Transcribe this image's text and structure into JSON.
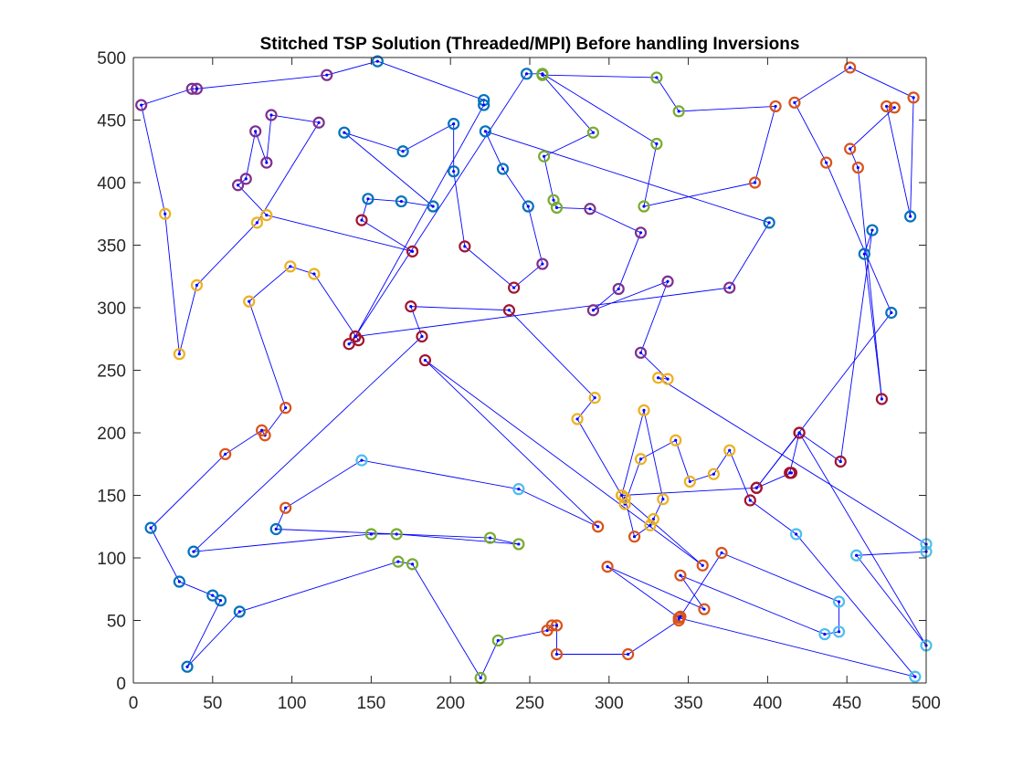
{
  "chart_data": {
    "type": "scatter",
    "title": "Stitched TSP Solution (Threaded/MPI) Before handling Inversions",
    "xlabel": "",
    "ylabel": "",
    "xlim": [
      0,
      500
    ],
    "ylim": [
      0,
      500
    ],
    "xticks": [
      "0",
      "50",
      "100",
      "150",
      "200",
      "250",
      "300",
      "350",
      "400",
      "450",
      "500"
    ],
    "yticks": [
      "0",
      "50",
      "100",
      "150",
      "200",
      "250",
      "300",
      "350",
      "400",
      "450",
      "500"
    ],
    "grid": false,
    "legend": "none",
    "route_color": "#0000ff",
    "node_dot_color": "#0000ff",
    "route_order": "listed order of points forms one closed tour",
    "colors": {
      "blue": "#0072BD",
      "orange": "#D95319",
      "yellow": "#EDB120",
      "purple": "#7E2F8E",
      "green": "#77AC30",
      "cyan": "#4DBEEE",
      "red": "#A2142F"
    },
    "points": [
      {
        "x": 5,
        "y": 462,
        "c": "purple"
      },
      {
        "x": 37,
        "y": 475,
        "c": "purple"
      },
      {
        "x": 40,
        "y": 475,
        "c": "purple"
      },
      {
        "x": 122,
        "y": 486,
        "c": "purple"
      },
      {
        "x": 154,
        "y": 497,
        "c": "blue"
      },
      {
        "x": 221,
        "y": 466,
        "c": "blue"
      },
      {
        "x": 221,
        "y": 462,
        "c": "blue"
      },
      {
        "x": 140,
        "y": 277,
        "c": "red"
      },
      {
        "x": 136,
        "y": 271,
        "c": "red"
      },
      {
        "x": 142,
        "y": 274,
        "c": "red"
      },
      {
        "x": 114,
        "y": 327,
        "c": "yellow"
      },
      {
        "x": 99,
        "y": 333,
        "c": "yellow"
      },
      {
        "x": 73,
        "y": 305,
        "c": "yellow"
      },
      {
        "x": 96,
        "y": 220,
        "c": "orange"
      },
      {
        "x": 83,
        "y": 198,
        "c": "orange"
      },
      {
        "x": 81,
        "y": 202,
        "c": "orange"
      },
      {
        "x": 58,
        "y": 183,
        "c": "orange"
      },
      {
        "x": 11,
        "y": 124,
        "c": "blue"
      },
      {
        "x": 29,
        "y": 81,
        "c": "blue"
      },
      {
        "x": 50,
        "y": 70,
        "c": "blue"
      },
      {
        "x": 55,
        "y": 66,
        "c": "blue"
      },
      {
        "x": 34,
        "y": 13,
        "c": "blue"
      },
      {
        "x": 67,
        "y": 57,
        "c": "blue"
      },
      {
        "x": 167,
        "y": 97,
        "c": "green"
      },
      {
        "x": 176,
        "y": 95,
        "c": "green"
      },
      {
        "x": 219,
        "y": 4,
        "c": "green"
      },
      {
        "x": 230,
        "y": 34,
        "c": "green"
      },
      {
        "x": 261,
        "y": 42,
        "c": "orange"
      },
      {
        "x": 264,
        "y": 46,
        "c": "orange"
      },
      {
        "x": 267,
        "y": 46,
        "c": "orange"
      },
      {
        "x": 267,
        "y": 23,
        "c": "orange"
      },
      {
        "x": 312,
        "y": 23,
        "c": "orange"
      },
      {
        "x": 344,
        "y": 50,
        "c": "orange"
      },
      {
        "x": 345,
        "y": 53,
        "c": "orange"
      },
      {
        "x": 371,
        "y": 104,
        "c": "orange"
      },
      {
        "x": 445,
        "y": 65,
        "c": "cyan"
      },
      {
        "x": 445,
        "y": 41,
        "c": "cyan"
      },
      {
        "x": 436,
        "y": 39,
        "c": "cyan"
      },
      {
        "x": 345,
        "y": 86,
        "c": "orange"
      },
      {
        "x": 360,
        "y": 59,
        "c": "orange"
      },
      {
        "x": 299,
        "y": 93,
        "c": "orange"
      },
      {
        "x": 344,
        "y": 52,
        "c": "orange"
      },
      {
        "x": 493,
        "y": 5,
        "c": "cyan"
      },
      {
        "x": 418,
        "y": 119,
        "c": "cyan"
      },
      {
        "x": 389,
        "y": 146,
        "c": "red"
      },
      {
        "x": 376,
        "y": 186,
        "c": "yellow"
      },
      {
        "x": 366,
        "y": 167,
        "c": "yellow"
      },
      {
        "x": 351,
        "y": 161,
        "c": "yellow"
      },
      {
        "x": 342,
        "y": 194,
        "c": "yellow"
      },
      {
        "x": 320,
        "y": 179,
        "c": "yellow"
      },
      {
        "x": 310,
        "y": 143,
        "c": "yellow"
      },
      {
        "x": 308,
        "y": 150,
        "c": "yellow"
      },
      {
        "x": 322,
        "y": 218,
        "c": "yellow"
      },
      {
        "x": 334,
        "y": 147,
        "c": "yellow"
      },
      {
        "x": 328,
        "y": 131,
        "c": "yellow"
      },
      {
        "x": 326,
        "y": 126,
        "c": "yellow"
      },
      {
        "x": 316,
        "y": 117,
        "c": "orange"
      },
      {
        "x": 310,
        "y": 148,
        "c": "yellow"
      },
      {
        "x": 359,
        "y": 94,
        "c": "orange"
      },
      {
        "x": 184,
        "y": 258,
        "c": "red"
      },
      {
        "x": 293,
        "y": 125,
        "c": "orange"
      },
      {
        "x": 243,
        "y": 155,
        "c": "cyan"
      },
      {
        "x": 144,
        "y": 178,
        "c": "cyan"
      },
      {
        "x": 96,
        "y": 140,
        "c": "orange"
      },
      {
        "x": 90,
        "y": 123,
        "c": "blue"
      },
      {
        "x": 225,
        "y": 116,
        "c": "green"
      },
      {
        "x": 243,
        "y": 111,
        "c": "green"
      },
      {
        "x": 166,
        "y": 119,
        "c": "green"
      },
      {
        "x": 150,
        "y": 119,
        "c": "green"
      },
      {
        "x": 38,
        "y": 105,
        "c": "blue"
      },
      {
        "x": 182,
        "y": 277,
        "c": "red"
      },
      {
        "x": 175,
        "y": 301,
        "c": "red"
      },
      {
        "x": 237,
        "y": 298,
        "c": "red"
      },
      {
        "x": 291,
        "y": 228,
        "c": "yellow"
      },
      {
        "x": 280,
        "y": 211,
        "c": "yellow"
      },
      {
        "x": 308,
        "y": 150,
        "c": "yellow"
      },
      {
        "x": 393,
        "y": 156,
        "c": "red"
      },
      {
        "x": 415,
        "y": 168,
        "c": "red"
      },
      {
        "x": 414,
        "y": 168,
        "c": "red"
      },
      {
        "x": 420,
        "y": 200,
        "c": "red"
      },
      {
        "x": 446,
        "y": 177,
        "c": "red"
      },
      {
        "x": 466,
        "y": 362,
        "c": "blue"
      },
      {
        "x": 461,
        "y": 343,
        "c": "blue"
      },
      {
        "x": 472,
        "y": 227,
        "c": "red"
      },
      {
        "x": 457,
        "y": 412,
        "c": "orange"
      },
      {
        "x": 452,
        "y": 427,
        "c": "orange"
      },
      {
        "x": 480,
        "y": 460,
        "c": "orange"
      },
      {
        "x": 475,
        "y": 461,
        "c": "orange"
      },
      {
        "x": 490,
        "y": 373,
        "c": "blue"
      },
      {
        "x": 492,
        "y": 468,
        "c": "orange"
      },
      {
        "x": 452,
        "y": 492,
        "c": "orange"
      },
      {
        "x": 417,
        "y": 464,
        "c": "orange"
      },
      {
        "x": 437,
        "y": 416,
        "c": "orange"
      },
      {
        "x": 478,
        "y": 296,
        "c": "blue"
      },
      {
        "x": 393,
        "y": 156,
        "c": "red"
      },
      {
        "x": 420,
        "y": 200,
        "c": "red"
      },
      {
        "x": 500,
        "y": 30,
        "c": "cyan"
      },
      {
        "x": 456,
        "y": 102,
        "c": "cyan"
      },
      {
        "x": 500,
        "y": 105,
        "c": "cyan"
      },
      {
        "x": 500,
        "y": 111,
        "c": "cyan"
      },
      {
        "x": 331,
        "y": 244,
        "c": "yellow"
      },
      {
        "x": 337,
        "y": 243,
        "c": "yellow"
      },
      {
        "x": 320,
        "y": 264,
        "c": "purple"
      },
      {
        "x": 337,
        "y": 321,
        "c": "purple"
      },
      {
        "x": 290,
        "y": 298,
        "c": "purple"
      },
      {
        "x": 306,
        "y": 315,
        "c": "purple"
      },
      {
        "x": 320,
        "y": 360,
        "c": "purple"
      },
      {
        "x": 288,
        "y": 379,
        "c": "purple"
      },
      {
        "x": 267,
        "y": 380,
        "c": "green"
      },
      {
        "x": 265,
        "y": 386,
        "c": "green"
      },
      {
        "x": 259,
        "y": 421,
        "c": "green"
      },
      {
        "x": 290,
        "y": 440,
        "c": "green"
      },
      {
        "x": 258,
        "y": 486,
        "c": "green"
      },
      {
        "x": 330,
        "y": 484,
        "c": "green"
      },
      {
        "x": 344,
        "y": 457,
        "c": "green"
      },
      {
        "x": 405,
        "y": 461,
        "c": "orange"
      },
      {
        "x": 392,
        "y": 400,
        "c": "orange"
      },
      {
        "x": 322,
        "y": 381,
        "c": "green"
      },
      {
        "x": 330,
        "y": 431,
        "c": "green"
      },
      {
        "x": 258,
        "y": 487,
        "c": "green"
      },
      {
        "x": 248,
        "y": 487,
        "c": "blue"
      },
      {
        "x": 140,
        "y": 277,
        "c": "red"
      },
      {
        "x": 376,
        "y": 316,
        "c": "purple"
      },
      {
        "x": 401,
        "y": 368,
        "c": "blue"
      },
      {
        "x": 222,
        "y": 441,
        "c": "blue"
      },
      {
        "x": 233,
        "y": 411,
        "c": "blue"
      },
      {
        "x": 249,
        "y": 381,
        "c": "blue"
      },
      {
        "x": 258,
        "y": 335,
        "c": "purple"
      },
      {
        "x": 240,
        "y": 316,
        "c": "red"
      },
      {
        "x": 209,
        "y": 349,
        "c": "red"
      },
      {
        "x": 202,
        "y": 409,
        "c": "blue"
      },
      {
        "x": 202,
        "y": 447,
        "c": "blue"
      },
      {
        "x": 170,
        "y": 425,
        "c": "blue"
      },
      {
        "x": 133,
        "y": 440,
        "c": "blue"
      },
      {
        "x": 189,
        "y": 381,
        "c": "blue"
      },
      {
        "x": 169,
        "y": 385,
        "c": "blue"
      },
      {
        "x": 148,
        "y": 387,
        "c": "blue"
      },
      {
        "x": 144,
        "y": 370,
        "c": "red"
      },
      {
        "x": 176,
        "y": 345,
        "c": "red"
      },
      {
        "x": 84,
        "y": 374,
        "c": "yellow"
      },
      {
        "x": 66,
        "y": 398,
        "c": "purple"
      },
      {
        "x": 71,
        "y": 403,
        "c": "purple"
      },
      {
        "x": 77,
        "y": 441,
        "c": "purple"
      },
      {
        "x": 84,
        "y": 416,
        "c": "purple"
      },
      {
        "x": 87,
        "y": 454,
        "c": "purple"
      },
      {
        "x": 117,
        "y": 448,
        "c": "purple"
      },
      {
        "x": 78,
        "y": 368,
        "c": "yellow"
      },
      {
        "x": 40,
        "y": 318,
        "c": "yellow"
      },
      {
        "x": 29,
        "y": 263,
        "c": "yellow"
      },
      {
        "x": 20,
        "y": 375,
        "c": "yellow"
      }
    ]
  }
}
